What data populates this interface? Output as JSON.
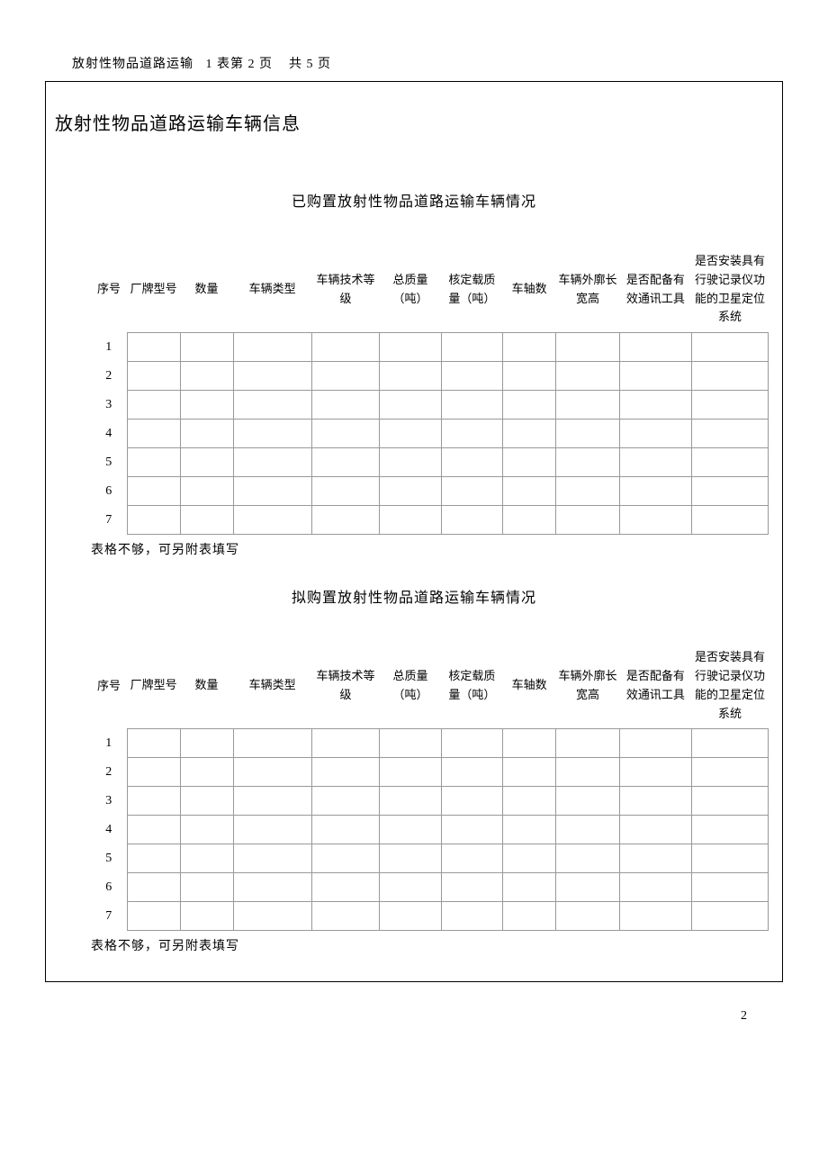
{
  "header": {
    "doc_name": "放射性物品道路运输",
    "table_page": "1 表第 2 页",
    "total_pages": "共 5 页"
  },
  "title": "放射性物品道路运输车辆信息",
  "section1": {
    "heading": "已购置放射性物品道路运输车辆情况",
    "foot_note": "表格不够，可另附表填写"
  },
  "section2": {
    "heading": "拟购置放射性物品道路运输车辆情况",
    "foot_note": "表格不够，可另附表填写"
  },
  "columns": {
    "seq": "序号",
    "brand": "厂牌型号",
    "qty": "数量",
    "type": "车辆类型",
    "tech": "车辆技术等级",
    "mass": "总质量（吨）",
    "rated": "核定载质量（吨）",
    "axle": "车轴数",
    "dim": "车辆外廓长宽高",
    "comm": "是否配备有效通讯工具",
    "gps": "是否安装具有行驶记录仪功能的卫星定位系统"
  },
  "rows_s1": [
    "1",
    "2",
    "3",
    "4",
    "5",
    "6",
    "7"
  ],
  "rows_s2": [
    "1",
    "2",
    "3",
    "4",
    "5",
    "6",
    "7"
  ],
  "page_number": "2",
  "colors": {
    "text": "#000000",
    "border": "#999999",
    "background": "#ffffff"
  }
}
